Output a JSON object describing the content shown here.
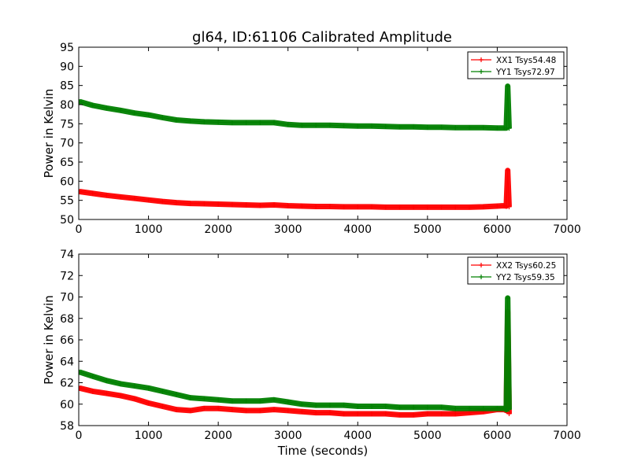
{
  "figure_title": "gl64, ID:61106 Calibrated Amplitude",
  "chart_data": [
    {
      "type": "line",
      "title": "gl64, ID:61106 Calibrated Amplitude",
      "xlabel": "",
      "ylabel": "Power in Kelvin",
      "xlim": [
        0,
        7000
      ],
      "ylim": [
        50,
        95
      ],
      "xticks": [
        0,
        1000,
        2000,
        3000,
        4000,
        5000,
        6000,
        7000
      ],
      "yticks": [
        50,
        55,
        60,
        65,
        70,
        75,
        80,
        85,
        90,
        95
      ],
      "legend_position": "top-right",
      "grid": false,
      "series": [
        {
          "name": "XX1 Tsys54.48",
          "color": "#ff0000",
          "x": [
            10,
            200,
            400,
            600,
            800,
            1000,
            1200,
            1400,
            1600,
            1800,
            2000,
            2200,
            2400,
            2600,
            2800,
            3000,
            3200,
            3400,
            3600,
            3800,
            4000,
            4200,
            4400,
            4600,
            4800,
            5000,
            5200,
            5400,
            5600,
            5800,
            6000,
            6100,
            6130,
            6150,
            6170
          ],
          "y": [
            57.3,
            56.8,
            56.3,
            55.9,
            55.5,
            55.1,
            54.7,
            54.4,
            54.2,
            54.1,
            54.0,
            53.9,
            53.8,
            53.7,
            53.8,
            53.6,
            53.5,
            53.4,
            53.4,
            53.3,
            53.3,
            53.3,
            53.2,
            53.2,
            53.2,
            53.2,
            53.2,
            53.2,
            53.2,
            53.3,
            53.5,
            53.6,
            53.5,
            62.8,
            53.3
          ]
        },
        {
          "name": "YY1 Tsys72.97",
          "color": "#008000",
          "x": [
            10,
            200,
            400,
            600,
            800,
            1000,
            1200,
            1400,
            1600,
            1800,
            2000,
            2200,
            2400,
            2600,
            2800,
            3000,
            3200,
            3400,
            3600,
            3800,
            4000,
            4200,
            4400,
            4600,
            4800,
            5000,
            5200,
            5400,
            5600,
            5800,
            6000,
            6100,
            6130,
            6150,
            6170
          ],
          "y": [
            80.8,
            79.8,
            79.1,
            78.5,
            77.8,
            77.3,
            76.6,
            76.0,
            75.7,
            75.5,
            75.4,
            75.3,
            75.3,
            75.3,
            75.3,
            74.8,
            74.6,
            74.6,
            74.6,
            74.5,
            74.4,
            74.4,
            74.3,
            74.2,
            74.2,
            74.1,
            74.1,
            74.0,
            74.0,
            74.0,
            73.9,
            73.9,
            73.9,
            84.8,
            73.8
          ]
        }
      ]
    },
    {
      "type": "line",
      "title": "",
      "xlabel": "Time (seconds)",
      "ylabel": "Power in Kelvin",
      "xlim": [
        0,
        7000
      ],
      "ylim": [
        58,
        74
      ],
      "xticks": [
        0,
        1000,
        2000,
        3000,
        4000,
        5000,
        6000,
        7000
      ],
      "yticks": [
        58,
        60,
        62,
        64,
        66,
        68,
        70,
        72,
        74
      ],
      "legend_position": "top-right",
      "grid": false,
      "series": [
        {
          "name": "XX2 Tsys60.25",
          "color": "#ff0000",
          "x": [
            10,
            200,
            400,
            600,
            800,
            1000,
            1200,
            1400,
            1600,
            1800,
            2000,
            2200,
            2400,
            2600,
            2800,
            3000,
            3200,
            3400,
            3600,
            3800,
            4000,
            4200,
            4400,
            4600,
            4800,
            5000,
            5200,
            5400,
            5600,
            5800,
            6000,
            6100,
            6130,
            6150,
            6170
          ],
          "y": [
            61.5,
            61.2,
            61.0,
            60.8,
            60.5,
            60.1,
            59.8,
            59.5,
            59.4,
            59.6,
            59.6,
            59.5,
            59.4,
            59.4,
            59.5,
            59.4,
            59.3,
            59.2,
            59.2,
            59.1,
            59.1,
            59.1,
            59.1,
            59.0,
            59.0,
            59.1,
            59.1,
            59.1,
            59.2,
            59.3,
            59.5,
            59.5,
            59.4,
            68.6,
            59.1
          ]
        },
        {
          "name": "YY2 Tsys59.35",
          "color": "#008000",
          "x": [
            10,
            200,
            400,
            600,
            800,
            1000,
            1200,
            1400,
            1600,
            1800,
            2000,
            2200,
            2400,
            2600,
            2800,
            3000,
            3200,
            3400,
            3600,
            3800,
            4000,
            4200,
            4400,
            4600,
            4800,
            5000,
            5200,
            5400,
            5600,
            5800,
            6000,
            6100,
            6130,
            6150,
            6170
          ],
          "y": [
            63.0,
            62.6,
            62.2,
            61.9,
            61.7,
            61.5,
            61.2,
            60.9,
            60.6,
            60.5,
            60.4,
            60.3,
            60.3,
            60.3,
            60.4,
            60.2,
            60.0,
            59.9,
            59.9,
            59.9,
            59.8,
            59.8,
            59.8,
            59.7,
            59.7,
            59.7,
            59.7,
            59.6,
            59.6,
            59.6,
            59.6,
            59.6,
            59.5,
            69.9,
            59.5
          ]
        }
      ]
    }
  ]
}
